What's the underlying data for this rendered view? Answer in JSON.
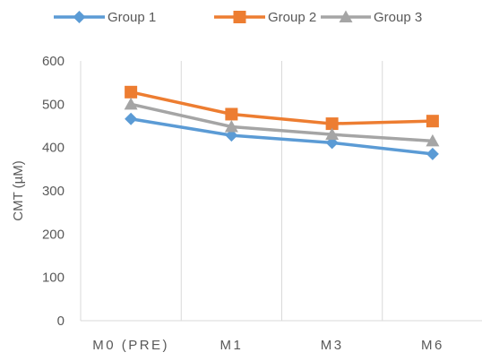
{
  "chart_data": {
    "type": "line",
    "title": "",
    "xlabel": "",
    "ylabel": "CMT (µM)",
    "categories": [
      "M0 (PRE)",
      "M1",
      "M3",
      "M6"
    ],
    "ylim": [
      0,
      600
    ],
    "yticks": [
      0,
      100,
      200,
      300,
      400,
      500,
      600
    ],
    "grid": "vertical",
    "legend_position": "top",
    "series": [
      {
        "name": "Group 1",
        "color": "#5B9BD5",
        "marker": "diamond",
        "values": [
          466,
          428,
          411,
          385
        ]
      },
      {
        "name": "Group 2",
        "color": "#ED7D31",
        "marker": "square",
        "values": [
          528,
          477,
          455,
          461
        ]
      },
      {
        "name": "Group 3",
        "color": "#A5A5A5",
        "marker": "triangle",
        "values": [
          500,
          448,
          430,
          415
        ]
      }
    ]
  }
}
